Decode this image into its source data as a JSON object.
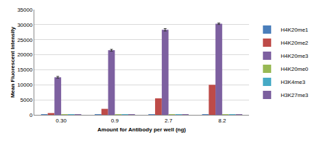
{
  "chart_data": {
    "type": "bar",
    "x_label": "Amount for Antibody per well (ng)",
    "y_label": "Mean Fluorescent Intensity",
    "categories": [
      "0.30",
      "0.9",
      "2.7",
      "8.2"
    ],
    "series": [
      {
        "name": "H4K20me1",
        "color": "#4a7ebb",
        "values": [
          50,
          60,
          70,
          80
        ]
      },
      {
        "name": "H4K20me2",
        "color": "#be4b48",
        "values": [
          600,
          2000,
          5500,
          10000
        ]
      },
      {
        "name": "H4K20me3",
        "color": "#7d60a0",
        "values": [
          12500,
          21500,
          28300,
          30300
        ],
        "errors": [
          300,
          300,
          400,
          250
        ]
      },
      {
        "name": "H4K20me0",
        "color": "#98b954",
        "values": [
          50,
          60,
          70,
          80
        ]
      },
      {
        "name": "H3K4me3",
        "color": "#46aac5",
        "values": [
          50,
          60,
          70,
          80
        ]
      },
      {
        "name": "H3K27me3",
        "color": "#7b5f9e",
        "values": [
          100,
          120,
          150,
          180
        ]
      }
    ],
    "ylim": [
      0,
      35000
    ],
    "yticks": [
      0,
      5000,
      10000,
      15000,
      20000,
      25000,
      30000,
      35000
    ],
    "grid": true,
    "legend": "right"
  }
}
